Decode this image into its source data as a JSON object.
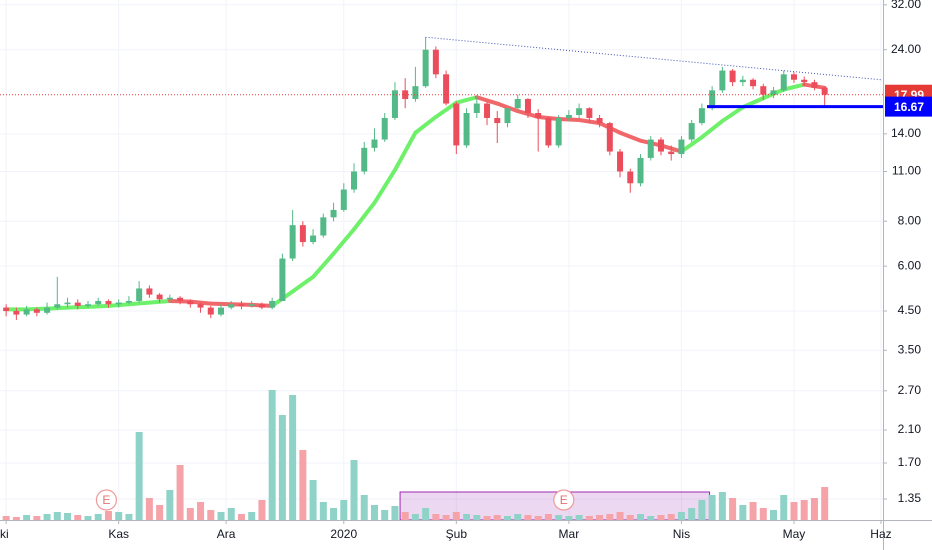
{
  "chart_data": {
    "type": "candlestick",
    "log_scale": true,
    "grid": true,
    "up_color": "#53b987",
    "down_color": "#eb4d5c",
    "volume_up_color": "#8fd3c8",
    "volume_down_color": "#f5a3a9",
    "x": [
      0,
      2,
      4,
      6,
      8,
      10,
      12,
      14,
      16,
      18,
      20,
      22,
      24,
      26,
      28,
      30,
      32,
      34,
      36,
      38,
      40,
      42,
      44,
      46,
      48,
      50,
      52,
      54,
      56,
      58,
      60,
      62,
      64,
      66,
      68,
      70,
      72,
      74,
      76,
      78,
      80,
      82,
      84,
      86,
      88,
      90,
      92,
      94,
      96,
      98,
      100,
      102,
      104,
      106,
      108,
      110,
      112,
      114,
      116,
      118,
      120,
      122,
      124,
      126,
      128,
      130,
      132,
      134,
      136,
      138,
      140,
      142,
      144,
      146,
      148,
      150,
      152,
      154,
      156,
      158,
      160
    ],
    "open": [
      4.6,
      4.5,
      4.4,
      4.55,
      4.45,
      4.6,
      4.7,
      4.75,
      4.65,
      4.7,
      4.8,
      4.7,
      4.75,
      4.8,
      5.2,
      5.0,
      4.85,
      4.9,
      4.8,
      4.7,
      4.6,
      4.4,
      4.6,
      4.7,
      4.65,
      4.7,
      4.6,
      4.8,
      6.3,
      7.8,
      7.0,
      7.3,
      8.2,
      8.6,
      9.8,
      11.0,
      12.8,
      13.5,
      15.5,
      18.5,
      17.5,
      19.0,
      24.0,
      20.5,
      17.0,
      13.0,
      16.0,
      17.0,
      15.5,
      15.0,
      16.5,
      17.5,
      16.0,
      15.5,
      13.0,
      15.5,
      15.8,
      16.5,
      15.5,
      15.0,
      12.5,
      11.0,
      10.2,
      12.0,
      13.5,
      12.5,
      12.3,
      13.5,
      15.0,
      16.5,
      18.5,
      21.0,
      19.5,
      19.8,
      19.0,
      18.0,
      18.5,
      20.5,
      19.8,
      19.5,
      18.8
    ],
    "high": [
      4.7,
      4.6,
      4.65,
      4.6,
      4.75,
      5.6,
      4.9,
      4.85,
      4.8,
      4.9,
      4.85,
      4.85,
      4.95,
      5.45,
      5.3,
      5.05,
      5.0,
      4.95,
      4.85,
      4.75,
      4.65,
      4.7,
      4.8,
      4.8,
      4.8,
      4.75,
      4.9,
      6.5,
      8.6,
      8.0,
      7.6,
      8.4,
      9.0,
      10.2,
      11.6,
      13.3,
      14.5,
      16.0,
      19.5,
      20.0,
      21.5,
      26.0,
      24.5,
      21.0,
      17.2,
      16.5,
      17.8,
      17.2,
      16.2,
      16.8,
      18.0,
      17.6,
      16.4,
      15.6,
      15.8,
      16.3,
      17.0,
      16.6,
      15.8,
      15.1,
      12.7,
      11.2,
      12.3,
      13.8,
      13.7,
      13.0,
      13.8,
      15.3,
      17.0,
      19.0,
      21.5,
      21.2,
      20.3,
      20.0,
      19.3,
      18.9,
      21.0,
      20.8,
      20.2,
      19.8,
      18.9
    ],
    "low": [
      4.35,
      4.25,
      4.35,
      4.35,
      4.4,
      4.55,
      4.6,
      4.55,
      4.6,
      4.65,
      4.6,
      4.6,
      4.7,
      4.75,
      4.9,
      4.75,
      4.75,
      4.7,
      4.6,
      4.45,
      4.3,
      4.35,
      4.55,
      4.55,
      4.6,
      4.55,
      4.55,
      4.8,
      6.2,
      6.8,
      6.9,
      7.2,
      8.0,
      8.5,
      9.6,
      10.8,
      12.5,
      13.3,
      15.3,
      16.5,
      17.2,
      18.8,
      20.0,
      16.8,
      12.3,
      12.8,
      15.5,
      14.8,
      13.2,
      14.6,
      16.2,
      15.5,
      12.5,
      12.8,
      12.8,
      15.2,
      15.5,
      15.0,
      14.6,
      12.2,
      10.6,
      9.6,
      10.0,
      11.8,
      12.2,
      11.8,
      12.0,
      13.3,
      14.8,
      16.3,
      18.2,
      19.0,
      19.0,
      18.6,
      17.4,
      17.6,
      18.3,
      19.4,
      19.0,
      18.5,
      16.7
    ],
    "close": [
      4.5,
      4.4,
      4.55,
      4.45,
      4.6,
      4.7,
      4.75,
      4.65,
      4.7,
      4.8,
      4.7,
      4.75,
      4.8,
      5.2,
      5.0,
      4.85,
      4.9,
      4.8,
      4.7,
      4.6,
      4.4,
      4.6,
      4.7,
      4.65,
      4.7,
      4.6,
      4.8,
      6.3,
      7.8,
      7.0,
      7.3,
      8.2,
      8.6,
      9.8,
      11.0,
      12.8,
      13.5,
      15.5,
      18.5,
      17.5,
      19.0,
      24.0,
      20.5,
      17.0,
      13.0,
      16.0,
      17.0,
      15.5,
      15.0,
      16.5,
      17.5,
      16.0,
      15.5,
      13.0,
      15.5,
      15.8,
      16.5,
      15.5,
      15.0,
      12.5,
      11.0,
      10.2,
      12.0,
      13.5,
      12.5,
      12.3,
      13.5,
      15.0,
      16.5,
      18.5,
      21.0,
      19.5,
      19.8,
      19.0,
      18.0,
      18.5,
      20.5,
      19.8,
      19.5,
      18.8,
      17.99
    ],
    "volume": [
      4,
      3,
      5,
      4,
      6,
      8,
      7,
      5,
      4,
      6,
      9,
      8,
      6,
      88,
      22,
      15,
      30,
      55,
      12,
      18,
      10,
      8,
      12,
      6,
      8,
      20,
      130,
      105,
      125,
      70,
      40,
      18,
      12,
      20,
      60,
      25,
      15,
      10,
      14,
      8,
      6,
      12,
      6,
      5,
      8,
      6,
      5,
      4,
      5,
      4,
      6,
      5,
      4,
      6,
      5,
      4,
      5,
      4,
      5,
      6,
      8,
      5,
      6,
      4,
      5,
      6,
      8,
      12,
      20,
      25,
      28,
      22,
      15,
      18,
      12,
      10,
      25,
      18,
      20,
      22,
      33
    ],
    "moving_average": {
      "rising_color": "#6ef06a",
      "falling_color": "#f0686a",
      "x": [
        0,
        4,
        8,
        12,
        16,
        20,
        24,
        28,
        32,
        36,
        40,
        44,
        48,
        52,
        56,
        60,
        64,
        68,
        72,
        76,
        80,
        84,
        88,
        92,
        96,
        100,
        104,
        108,
        112,
        116,
        120,
        124,
        128,
        132,
        136,
        140,
        144,
        148,
        152,
        156,
        160
      ],
      "values": [
        4.55,
        4.55,
        4.57,
        4.6,
        4.62,
        4.65,
        4.7,
        4.75,
        4.8,
        4.78,
        4.72,
        4.7,
        4.68,
        4.65,
        5.1,
        5.6,
        6.5,
        7.6,
        9.0,
        11.1,
        14.1,
        15.6,
        17.1,
        17.7,
        17.0,
        16.2,
        15.6,
        15.4,
        15.3,
        15.0,
        14.1,
        13.4,
        13.0,
        12.5,
        13.7,
        15.2,
        16.6,
        17.6,
        18.6,
        19.2,
        18.8
      ]
    },
    "trendline": {
      "x": [
        82,
        171
      ],
      "values": [
        26,
        19.8
      ],
      "color": "#3f51b5"
    },
    "price_lines": [
      {
        "value": 17.99,
        "label": "17.99",
        "color": "#e53935",
        "style": "dotted"
      },
      {
        "value": 16.67,
        "label": "16.67",
        "color": "#0000ff",
        "style": "solid",
        "x_start": 137
      }
    ],
    "range_box": {
      "x": [
        77,
        137.5
      ],
      "color": "#9c27b0"
    },
    "events": [
      {
        "label": "E",
        "x": 19.6
      },
      {
        "label": "E",
        "x": 109
      }
    ],
    "xlim": [
      -1.2,
      171.4
    ],
    "xticks": [
      {
        "value": 0,
        "label": "ki"
      },
      {
        "value": 22,
        "label": "Kas"
      },
      {
        "value": 43,
        "label": "Ara"
      },
      {
        "value": 66,
        "label": "2020"
      },
      {
        "value": 88,
        "label": "Şub"
      },
      {
        "value": 110,
        "label": "Mar"
      },
      {
        "value": 132,
        "label": "Nis"
      },
      {
        "value": 154,
        "label": "May"
      },
      {
        "value": 171,
        "label": "Haz"
      }
    ],
    "ylim": [
      1.18,
      33
    ],
    "yticks": [
      {
        "value": 32,
        "label": "32.00"
      },
      {
        "value": 24,
        "label": "24.00"
      },
      {
        "value": 14,
        "label": "14.00"
      },
      {
        "value": 11,
        "label": "11.00"
      },
      {
        "value": 8,
        "label": "8.00"
      },
      {
        "value": 6,
        "label": "6.00"
      },
      {
        "value": 4.5,
        "label": "4.50"
      },
      {
        "value": 3.5,
        "label": "3.50"
      },
      {
        "value": 2.7,
        "label": "2.70"
      },
      {
        "value": 2.1,
        "label": "2.10"
      },
      {
        "value": 1.7,
        "label": "1.70"
      },
      {
        "value": 1.35,
        "label": "1.35"
      }
    ]
  }
}
